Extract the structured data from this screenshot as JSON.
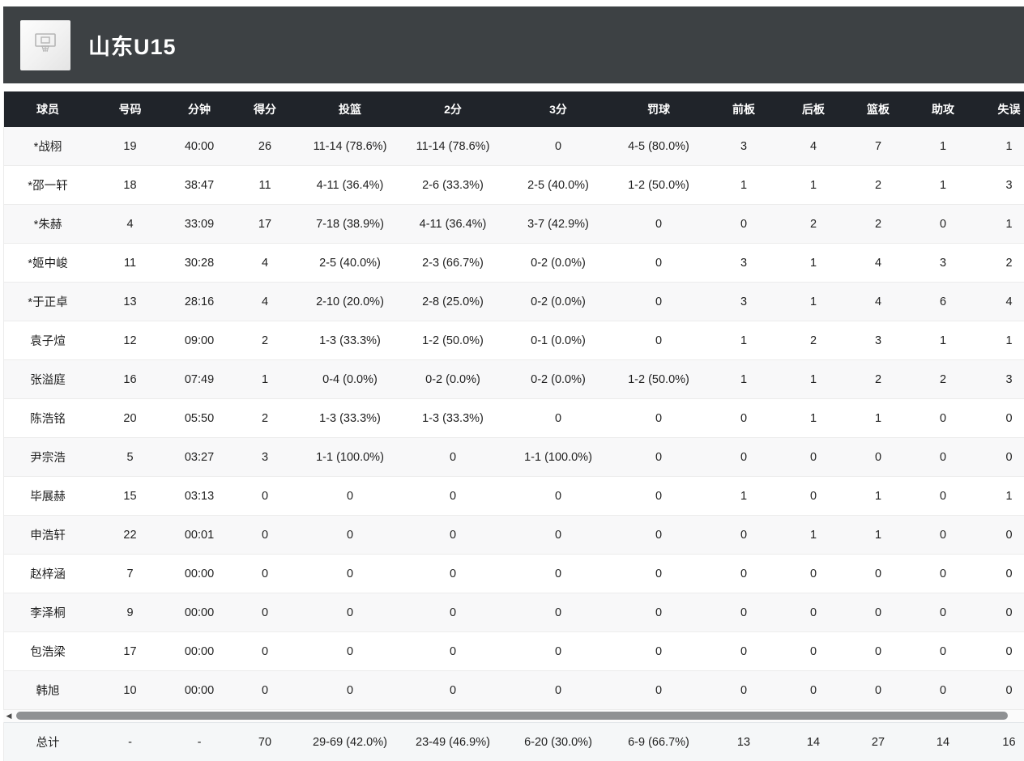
{
  "header": {
    "team_name": "山东U15",
    "background_color": "#3d4144",
    "logo_icon": "basketball-hoop-icon",
    "logo_background": "#f2f2f2"
  },
  "table": {
    "header_background": "#20242a",
    "header_text_color": "#ffffff",
    "columns": [
      "球员",
      "号码",
      "分钟",
      "得分",
      "投篮",
      "2分",
      "3分",
      "罚球",
      "前板",
      "后板",
      "篮板",
      "助攻",
      "失误"
    ],
    "rows": [
      [
        "*战栩",
        "19",
        "40:00",
        "26",
        "11-14 (78.6%)",
        "11-14 (78.6%)",
        "0",
        "4-5 (80.0%)",
        "3",
        "4",
        "7",
        "1",
        "1"
      ],
      [
        "*邵一轩",
        "18",
        "38:47",
        "11",
        "4-11 (36.4%)",
        "2-6 (33.3%)",
        "2-5 (40.0%)",
        "1-2 (50.0%)",
        "1",
        "1",
        "2",
        "1",
        "3"
      ],
      [
        "*朱赫",
        "4",
        "33:09",
        "17",
        "7-18 (38.9%)",
        "4-11 (36.4%)",
        "3-7 (42.9%)",
        "0",
        "0",
        "2",
        "2",
        "0",
        "1"
      ],
      [
        "*姬中峻",
        "11",
        "30:28",
        "4",
        "2-5 (40.0%)",
        "2-3 (66.7%)",
        "0-2 (0.0%)",
        "0",
        "3",
        "1",
        "4",
        "3",
        "2"
      ],
      [
        "*于正卓",
        "13",
        "28:16",
        "4",
        "2-10 (20.0%)",
        "2-8 (25.0%)",
        "0-2 (0.0%)",
        "0",
        "3",
        "1",
        "4",
        "6",
        "4"
      ],
      [
        "袁子煊",
        "12",
        "09:00",
        "2",
        "1-3 (33.3%)",
        "1-2 (50.0%)",
        "0-1 (0.0%)",
        "0",
        "1",
        "2",
        "3",
        "1",
        "1"
      ],
      [
        "张溢庭",
        "16",
        "07:49",
        "1",
        "0-4 (0.0%)",
        "0-2 (0.0%)",
        "0-2 (0.0%)",
        "1-2 (50.0%)",
        "1",
        "1",
        "2",
        "2",
        "3"
      ],
      [
        "陈浩铭",
        "20",
        "05:50",
        "2",
        "1-3 (33.3%)",
        "1-3 (33.3%)",
        "0",
        "0",
        "0",
        "1",
        "1",
        "0",
        "0"
      ],
      [
        "尹宗浩",
        "5",
        "03:27",
        "3",
        "1-1 (100.0%)",
        "0",
        "1-1 (100.0%)",
        "0",
        "0",
        "0",
        "0",
        "0",
        "0"
      ],
      [
        "毕展赫",
        "15",
        "03:13",
        "0",
        "0",
        "0",
        "0",
        "0",
        "1",
        "0",
        "1",
        "0",
        "1"
      ],
      [
        "申浩轩",
        "22",
        "00:01",
        "0",
        "0",
        "0",
        "0",
        "0",
        "0",
        "1",
        "1",
        "0",
        "0"
      ],
      [
        "赵梓涵",
        "7",
        "00:00",
        "0",
        "0",
        "0",
        "0",
        "0",
        "0",
        "0",
        "0",
        "0",
        "0"
      ],
      [
        "李泽桐",
        "9",
        "00:00",
        "0",
        "0",
        "0",
        "0",
        "0",
        "0",
        "0",
        "0",
        "0",
        "0"
      ],
      [
        "包浩梁",
        "17",
        "00:00",
        "0",
        "0",
        "0",
        "0",
        "0",
        "0",
        "0",
        "0",
        "0",
        "0"
      ],
      [
        "韩旭",
        "10",
        "00:00",
        "0",
        "0",
        "0",
        "0",
        "0",
        "0",
        "0",
        "0",
        "0",
        "0"
      ]
    ],
    "totals": [
      "总计",
      "-",
      "-",
      "70",
      "29-69 (42.0%)",
      "23-49 (46.9%)",
      "6-20 (30.0%)",
      "6-9 (66.7%)",
      "13",
      "14",
      "27",
      "14",
      "16"
    ]
  },
  "scrollbar": {
    "orientation": "horizontal",
    "left_arrow_glyph": "◀",
    "thumb_color": "#8f9193"
  }
}
